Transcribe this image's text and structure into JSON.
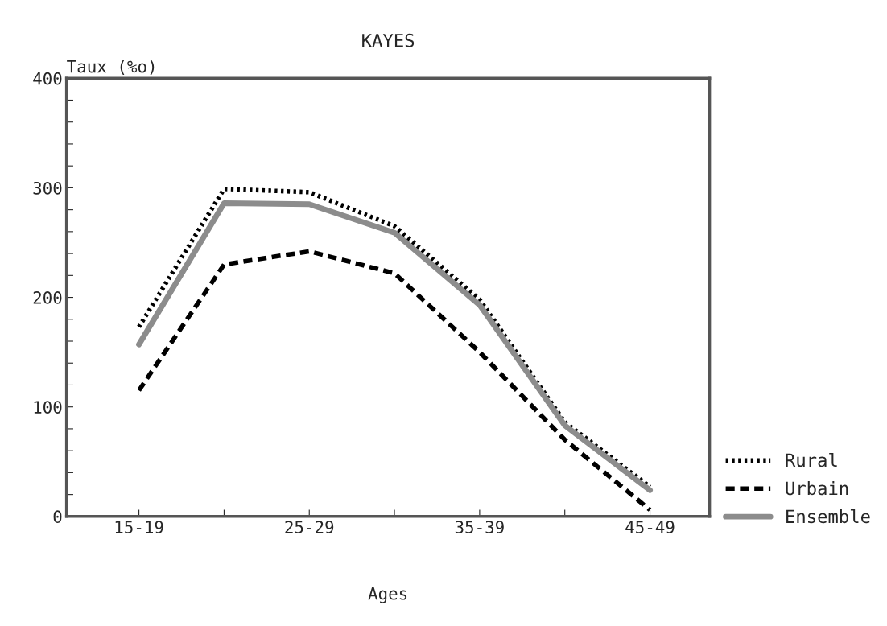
{
  "chart_data": {
    "type": "line",
    "title": "KAYES",
    "xlabel": "Ages",
    "ylabel": "Taux (%o)",
    "categories": [
      "15-19",
      null,
      "25-29",
      null,
      "35-39",
      null,
      "45-49"
    ],
    "series": [
      {
        "name": "Rural",
        "color": "#000000",
        "line_style": "dotted",
        "values": [
          173,
          299,
          296,
          265,
          198,
          86,
          27
        ]
      },
      {
        "name": "Urbain",
        "color": "#000000",
        "line_style": "dashed",
        "values": [
          115,
          230,
          242,
          222,
          150,
          70,
          6
        ]
      },
      {
        "name": "Ensemble",
        "color": "#8c8c8c",
        "line_style": "solid",
        "values": [
          157,
          286,
          285,
          259,
          193,
          83,
          24
        ]
      }
    ],
    "ylim": [
      0,
      400
    ],
    "yticks": [
      0,
      {
        "value": 20,
        "label": null
      },
      {
        "value": 40,
        "label": null
      },
      {
        "value": 60,
        "label": null
      },
      {
        "value": 80,
        "label": null
      },
      100,
      {
        "value": 120,
        "label": null
      },
      {
        "value": 140,
        "label": null
      },
      {
        "value": 160,
        "label": null
      },
      {
        "value": 180,
        "label": null
      },
      200,
      {
        "value": 220,
        "label": null
      },
      {
        "value": 240,
        "label": null
      },
      {
        "value": 260,
        "label": null
      },
      {
        "value": 280,
        "label": null
      },
      300,
      {
        "value": 320,
        "label": null
      },
      {
        "value": 340,
        "label": null
      },
      {
        "value": 360,
        "label": null
      },
      {
        "value": 380,
        "label": null
      },
      400
    ],
    "grid": false,
    "legend": "bottom right",
    "marker": "none"
  }
}
